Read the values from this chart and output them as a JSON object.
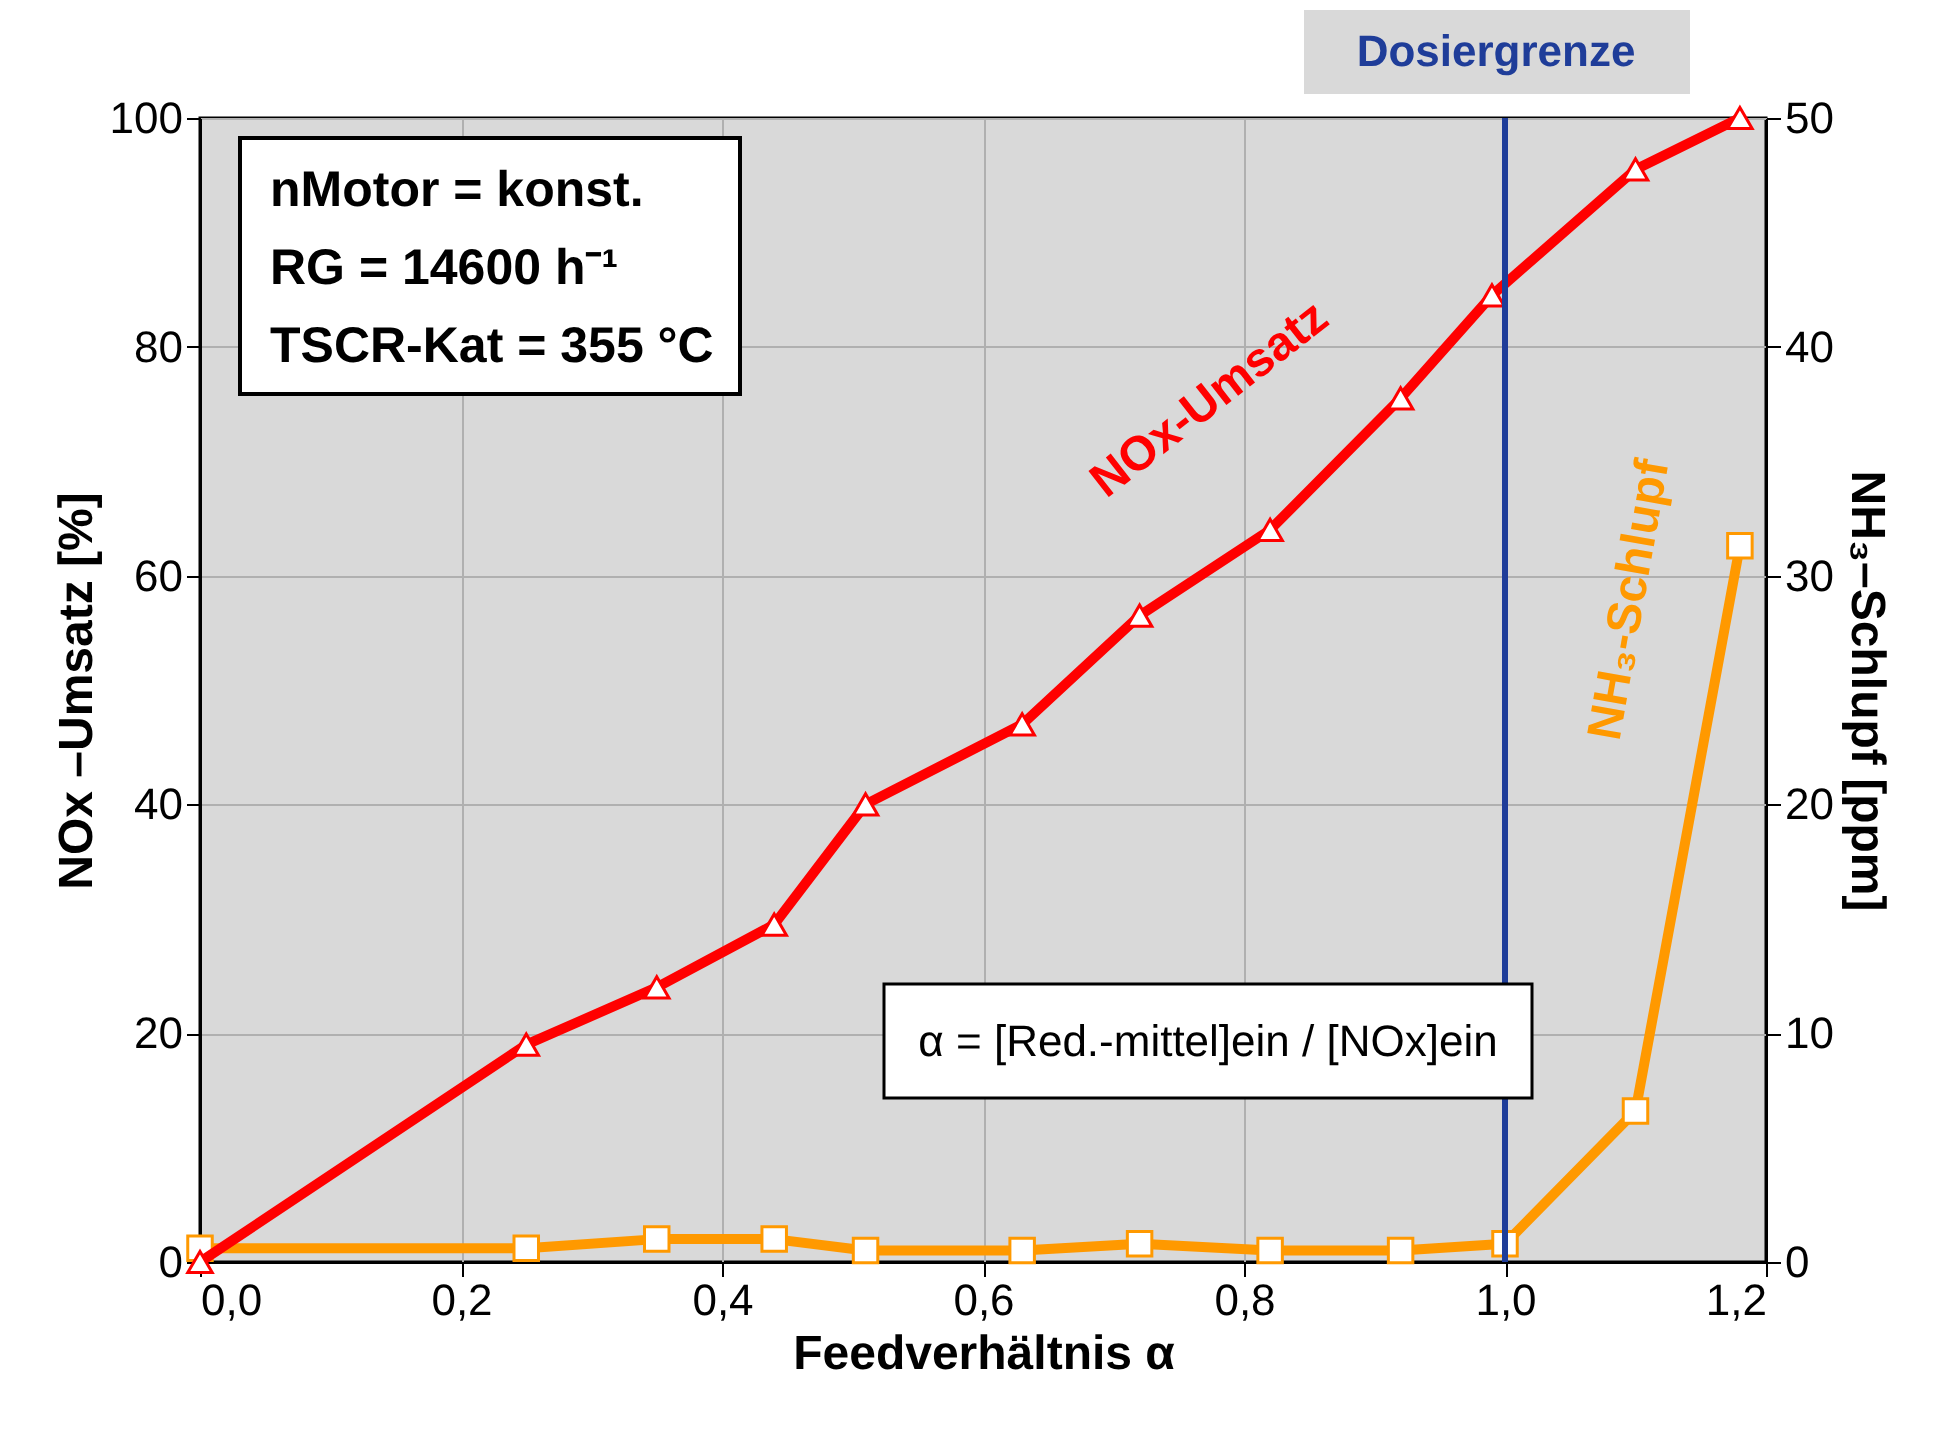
{
  "chart_data": {
    "type": "line",
    "xlabel": "Feedverhältnis α",
    "ylabel": "NOx –Umsatz [%]",
    "y2label": "NH₃–Schlupf [ppm]",
    "xlim": [
      0,
      1.2
    ],
    "xticks": [
      {
        "value": 0,
        "label": "0,0"
      },
      {
        "value": 0.2,
        "label": "0,2"
      },
      {
        "value": 0.4,
        "label": "0,4"
      },
      {
        "value": 0.6,
        "label": "0,6"
      },
      {
        "value": 0.8,
        "label": "0,8"
      },
      {
        "value": 1.0,
        "label": "1,0"
      },
      {
        "value": 1.2,
        "label": "1,2"
      }
    ],
    "ylim": [
      0,
      100
    ],
    "yticks": [
      0,
      20,
      40,
      60,
      80,
      100
    ],
    "y2lim": [
      0,
      50
    ],
    "y2ticks": [
      0,
      10,
      20,
      30,
      40,
      50
    ],
    "grid": true,
    "legend": false,
    "series": [
      {
        "name": "NOx-Umsatz",
        "color": "#ff0000",
        "marker": "triangle",
        "x": [
          0,
          0.25,
          0.35,
          0.44,
          0.51,
          0.63,
          0.72,
          0.82,
          0.92,
          0.99,
          1.1,
          1.18
        ],
        "values": [
          0,
          19,
          24,
          29.5,
          40,
          47,
          56.5,
          64,
          75.5,
          84.5,
          95.5,
          100
        ]
      },
      {
        "name": "NH₃-Schlupf",
        "color": "#ff9900",
        "marker": "square",
        "axis": "y2",
        "x": [
          0,
          0.25,
          0.35,
          0.44,
          0.51,
          0.63,
          0.72,
          0.82,
          0.92,
          1.0,
          1.1,
          1.18
        ],
        "values": [
          0.6,
          0.6,
          1,
          1,
          0.5,
          0.5,
          0.8,
          0.5,
          0.5,
          0.8,
          6.6,
          31.3
        ]
      }
    ],
    "ref_lines": [
      {
        "axis": "x",
        "value": 1.0,
        "label": "Dosiergrenze",
        "color": "#1f3d99"
      }
    ],
    "annotations": [
      "nMotor = konst.",
      "RG = 14600 h⁻¹",
      "TSCR-Kat = 355 °C",
      "α = [Red.-mittel]ein / [NOx]ein"
    ]
  }
}
